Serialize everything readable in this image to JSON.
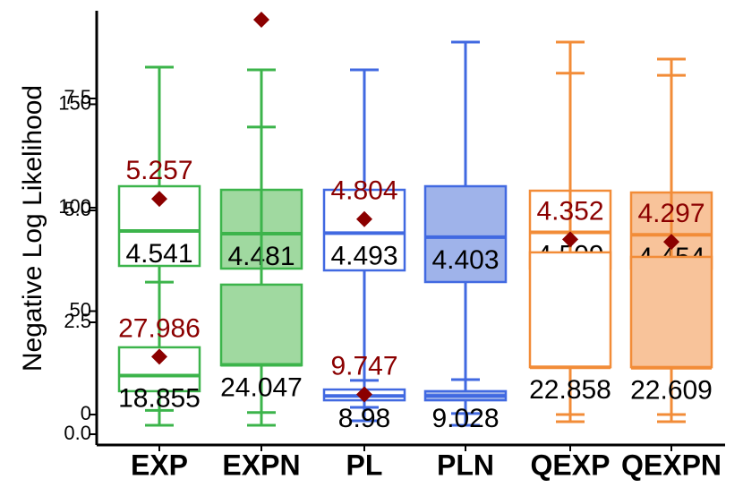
{
  "chart_data": {
    "type": "box",
    "ylabel": "Negative Log Likelihood",
    "categories": [
      "EXP",
      "EXPN",
      "PL",
      "PLN",
      "QEXP",
      "QEXPN"
    ],
    "colors": [
      "#3cb44b",
      "#3cb44b",
      "#4169e1",
      "#4169e1",
      "#f28c38",
      "#f28c38"
    ],
    "fills": [
      "#ffffff",
      "#a0d9a0",
      "#ffffff",
      "#9fb3ea",
      "#ffffff",
      "#f8c39a"
    ],
    "mean_color": "#8b0000",
    "ylim": [
      -0.24,
      9.46
    ],
    "yticks": [
      {
        "value": 0,
        "label": "0.0"
      },
      {
        "value": 2.5,
        "label": "2.5"
      },
      {
        "value": 5,
        "label": "5.0"
      },
      {
        "value": 7.5,
        "label": "7.5"
      }
    ],
    "y2lim": [
      -14.7,
      195.2
    ],
    "y2ticks": [
      0,
      50,
      100,
      150
    ],
    "series": [
      {
        "axis": "y",
        "whisker_low": [
          0.2,
          0.2,
          0.3,
          0.2,
          0.28,
          0.28
        ],
        "q1": [
          3.76,
          3.7,
          3.66,
          3.4,
          3.7,
          3.7
        ],
        "median": [
          4.541,
          4.481,
          4.493,
          4.403,
          4.509,
          4.454
        ],
        "q3": [
          5.54,
          5.46,
          5.46,
          5.54,
          5.44,
          5.4
        ],
        "whisker_high": [
          8.2,
          8.14,
          8.14,
          8.76,
          8.76,
          8.38
        ],
        "means": [
          5.257,
          9.26,
          4.804,
          null,
          4.352,
          4.297
        ],
        "mean_labels": [
          "5.257",
          null,
          "4.804",
          null,
          "4.352",
          "4.297"
        ]
      },
      {
        "axis": "y2",
        "whisker_low": [
          2,
          1,
          3.5,
          0.5,
          0,
          0
        ],
        "q1": [
          11.3,
          23.8,
          6.9,
          6.9,
          22.9,
          22.9
        ],
        "median": [
          18.855,
          24.047,
          8.98,
          9.028,
          22.858,
          22.609
        ],
        "q3": [
          32.5,
          62.8,
          12.1,
          11.3,
          78.4,
          76.2
        ],
        "whisker_high": [
          64,
          139,
          16.5,
          16.9,
          165,
          164
        ],
        "means": [
          27.986,
          null,
          9.747,
          null,
          null,
          null
        ],
        "mean_labels": [
          "27.986",
          null,
          "9.747",
          null,
          null,
          null
        ]
      }
    ]
  }
}
